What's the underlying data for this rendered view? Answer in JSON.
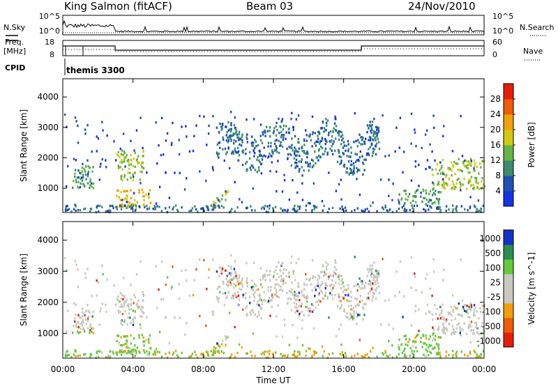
{
  "header": {
    "station": "King Salmon (fitACF)",
    "beam": "Beam 03",
    "date": "24/Nov/2010"
  },
  "side_labels": {
    "nsky": "N.Sky",
    "nsearch": "N.Search",
    "freq_line1": "Freq.",
    "freq_line2": "[MHz]",
    "nave": "Nave",
    "cpid": "CPID",
    "cpid_value": "themis 3300"
  },
  "noise_axis": {
    "left_ticks": [
      "10^5",
      "10^0"
    ],
    "right_ticks": [
      "10^5",
      "10^0"
    ]
  },
  "freq_axis": {
    "left_ticks": [
      "18",
      "8"
    ],
    "right_ticks": [
      "60",
      "0"
    ]
  },
  "colors": {
    "power": [
      "#1432e6",
      "#2050b4",
      "#3c8c6e",
      "#64b446",
      "#d2c814",
      "#f0a00a",
      "#f05a0a",
      "#e61e0a"
    ],
    "velocity": [
      "#e61e0a",
      "#f05a0a",
      "#f0a00a",
      "#c8c8c0",
      "#c8c8c0",
      "#64c83c",
      "#2d8c50",
      "#1432c8"
    ],
    "gray": "#c8c8c0"
  },
  "chart_data": [
    {
      "type": "heatmap",
      "title": "",
      "quantity": "Power",
      "colorbar_label": "Power [dB]",
      "colorbar_ticks": [
        "4",
        "8",
        "12",
        "16",
        "20",
        "24",
        "28"
      ],
      "colorbar_range": [
        0,
        32
      ],
      "ylabel": "Slant Range [km]",
      "y_ticks": [
        "1000",
        "2000",
        "3000",
        "4000"
      ],
      "ylim": [
        200,
        4600
      ],
      "xlim": [
        0,
        24
      ],
      "regions": [
        {
          "t": [
            0.5,
            1.8
          ],
          "r": [
            1000,
            1800
          ],
          "p": 12
        },
        {
          "t": [
            3.0,
            4.6
          ],
          "r": [
            1300,
            2300
          ],
          "p": 16
        },
        {
          "t": [
            3.0,
            5.0
          ],
          "r": [
            400,
            1000
          ],
          "p": 20
        },
        {
          "t": [
            8.7,
            18.0
          ],
          "r": [
            1800,
            3000
          ],
          "p": 8
        },
        {
          "t": [
            8.5,
            9.5
          ],
          "r": [
            300,
            600
          ],
          "p": 16
        },
        {
          "t": [
            19.0,
            21.5
          ],
          "r": [
            500,
            1000
          ],
          "p": 12
        },
        {
          "t": [
            21.0,
            24.0
          ],
          "r": [
            1000,
            2000
          ],
          "p": 16
        }
      ]
    },
    {
      "type": "heatmap",
      "title": "",
      "quantity": "Velocity",
      "colorbar_label": "Velocity [m s^-1]",
      "colorbar_ticks": [
        "1000",
        "500",
        "100",
        "25",
        "-25",
        "-100",
        "-500",
        "-1000"
      ],
      "ylabel": "Slant Range [km]",
      "xlabel": "Time UT",
      "x_ticks": [
        "00:00",
        "04:00",
        "08:00",
        "12:00",
        "16:00",
        "20:00",
        "00:00"
      ],
      "y_ticks": [
        "1000",
        "2000",
        "3000",
        "4000"
      ],
      "ylim": [
        200,
        4600
      ],
      "xlim": [
        0,
        24
      ]
    }
  ]
}
